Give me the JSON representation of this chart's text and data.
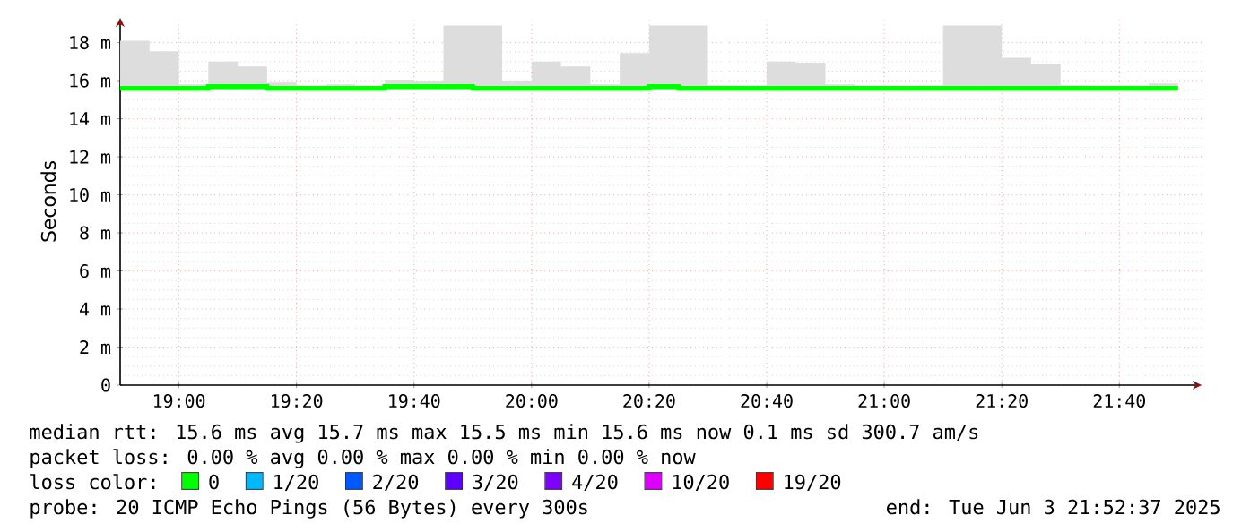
{
  "chart_data": {
    "type": "step",
    "ylabel": "Seconds",
    "x": [
      18.8333,
      18.9167,
      19.0,
      19.0833,
      19.1667,
      19.25,
      19.3333,
      19.4167,
      19.5,
      19.5833,
      19.6667,
      19.75,
      19.8333,
      19.9167,
      20.0,
      20.0833,
      20.1667,
      20.25,
      20.3333,
      20.4167,
      20.5,
      20.5833,
      20.6667,
      20.75,
      20.8333,
      20.9167,
      21.0,
      21.0833,
      21.1667,
      21.25,
      21.3333,
      21.4167,
      21.5,
      21.5833,
      21.6667,
      21.75,
      21.8333
    ],
    "series": [
      {
        "name": "0",
        "color": "#00ff00",
        "values": [
          15.6,
          15.6,
          15.6,
          15.7,
          15.7,
          15.6,
          15.6,
          15.6,
          15.6,
          15.7,
          15.7,
          15.7,
          15.6,
          15.6,
          15.6,
          15.6,
          15.6,
          15.6,
          15.7,
          15.6,
          15.6,
          15.6,
          15.6,
          15.6,
          15.6,
          15.6,
          15.6,
          15.6,
          15.6,
          15.6,
          15.6,
          15.6,
          15.6,
          15.6,
          15.6,
          15.6,
          15.6
        ],
        "lower": [
          15.5,
          15.5,
          15.5,
          15.5,
          15.5,
          15.5,
          15.5,
          15.5,
          15.5,
          15.5,
          15.5,
          15.5,
          15.5,
          15.5,
          15.5,
          15.5,
          15.5,
          15.5,
          15.5,
          15.5,
          15.5,
          15.5,
          15.5,
          15.5,
          15.5,
          15.5,
          15.5,
          15.5,
          15.5,
          15.5,
          15.5,
          15.5,
          15.5,
          15.5,
          15.5,
          15.5,
          15.5
        ],
        "upper": [
          18.1,
          17.55,
          15.8,
          17.0,
          16.75,
          15.9,
          15.7,
          15.8,
          15.7,
          16.05,
          16.0,
          18.9,
          18.9,
          16.0,
          17.0,
          16.75,
          15.8,
          17.45,
          18.9,
          18.9,
          15.75,
          15.65,
          17.0,
          16.95,
          15.8,
          15.65,
          15.65,
          15.65,
          18.9,
          18.9,
          17.2,
          16.85,
          15.75,
          15.7,
          15.7,
          15.85,
          15.85
        ]
      },
      {
        "name": "1/20",
        "color": "#00b8ff",
        "values": [
          null,
          null,
          null,
          null,
          null,
          null,
          null,
          null,
          null,
          null,
          null,
          null,
          null,
          null,
          null,
          null,
          null,
          null,
          null,
          null,
          null,
          null,
          null,
          null,
          null,
          null,
          null,
          null,
          null,
          null,
          null,
          null,
          null,
          null,
          null,
          null,
          null
        ]
      },
      {
        "name": "2/20",
        "color": "#0059ff",
        "values": [
          null,
          null,
          null,
          null,
          null,
          null,
          null,
          null,
          null,
          null,
          null,
          null,
          null,
          null,
          null,
          null,
          null,
          null,
          null,
          null,
          null,
          null,
          null,
          null,
          null,
          null,
          null,
          null,
          null,
          null,
          null,
          null,
          null,
          null,
          null,
          null,
          null
        ]
      },
      {
        "name": "3/20",
        "color": "#5e00ff",
        "values": [
          null,
          null,
          null,
          null,
          null,
          null,
          null,
          null,
          null,
          null,
          null,
          null,
          null,
          null,
          null,
          null,
          null,
          null,
          null,
          null,
          null,
          null,
          null,
          null,
          null,
          null,
          null,
          null,
          null,
          null,
          null,
          null,
          null,
          null,
          null,
          null,
          null
        ]
      },
      {
        "name": "4/20",
        "color": "#7e00ff",
        "values": [
          null,
          null,
          null,
          null,
          null,
          null,
          null,
          null,
          null,
          null,
          null,
          null,
          null,
          null,
          null,
          null,
          null,
          null,
          null,
          null,
          null,
          null,
          null,
          null,
          null,
          null,
          null,
          null,
          null,
          null,
          null,
          null,
          null,
          null,
          null,
          null,
          null
        ]
      },
      {
        "name": "10/20",
        "color": "#dd00ff",
        "values": [
          null,
          null,
          null,
          null,
          null,
          null,
          null,
          null,
          null,
          null,
          null,
          null,
          null,
          null,
          null,
          null,
          null,
          null,
          null,
          null,
          null,
          null,
          null,
          null,
          null,
          null,
          null,
          null,
          null,
          null,
          null,
          null,
          null,
          null,
          null,
          null,
          null
        ]
      },
      {
        "name": "19/20",
        "color": "#ff0000",
        "values": [
          null,
          null,
          null,
          null,
          null,
          null,
          null,
          null,
          null,
          null,
          null,
          null,
          null,
          null,
          null,
          null,
          null,
          null,
          null,
          null,
          null,
          null,
          null,
          null,
          null,
          null,
          null,
          null,
          null,
          null,
          null,
          null,
          null,
          null,
          null,
          null,
          null
        ]
      }
    ],
    "xlim": [
      18.8333,
      21.9
    ],
    "ylim": [
      0,
      19.3
    ],
    "xticks": [
      {
        "value": 19,
        "label": "19:00"
      },
      {
        "value": 19.3333,
        "label": "19:20"
      },
      {
        "value": 19.6667,
        "label": "19:40"
      },
      {
        "value": 20,
        "label": "20:00"
      },
      {
        "value": 20.3333,
        "label": "20:20"
      },
      {
        "value": 20.6667,
        "label": "20:40"
      },
      {
        "value": 21,
        "label": "21:00"
      },
      {
        "value": 21.3333,
        "label": "21:20"
      },
      {
        "value": 21.6667,
        "label": "21:40"
      }
    ],
    "yticks": [
      0,
      {
        "value": 2,
        "label": "2 m"
      },
      {
        "value": 4,
        "label": "4 m"
      },
      {
        "value": 6,
        "label": "6 m"
      },
      {
        "value": 8,
        "label": "8 m"
      },
      {
        "value": 10,
        "label": "10 m"
      },
      {
        "value": 12,
        "label": "12 m"
      },
      {
        "value": 14,
        "label": "14 m"
      },
      {
        "value": 16,
        "label": "16 m"
      },
      {
        "value": 18,
        "label": "18 m"
      }
    ],
    "grid": true,
    "legend": "bottom",
    "legend_title": "loss color:",
    "annotations": [
      "median rtt: 15.6 ms avg 15.7 ms max 15.5 ms min 15.6 ms now 0.1 ms sd 300.7 am/s",
      "packet loss: 0.00 % avg 0.00 % max 0.00 % min 0.00 % now",
      "probe: 20 ICMP Echo Pings (56 Bytes) every 300s",
      "end: Tue Jun 3 21:52:37 2025"
    ]
  }
}
